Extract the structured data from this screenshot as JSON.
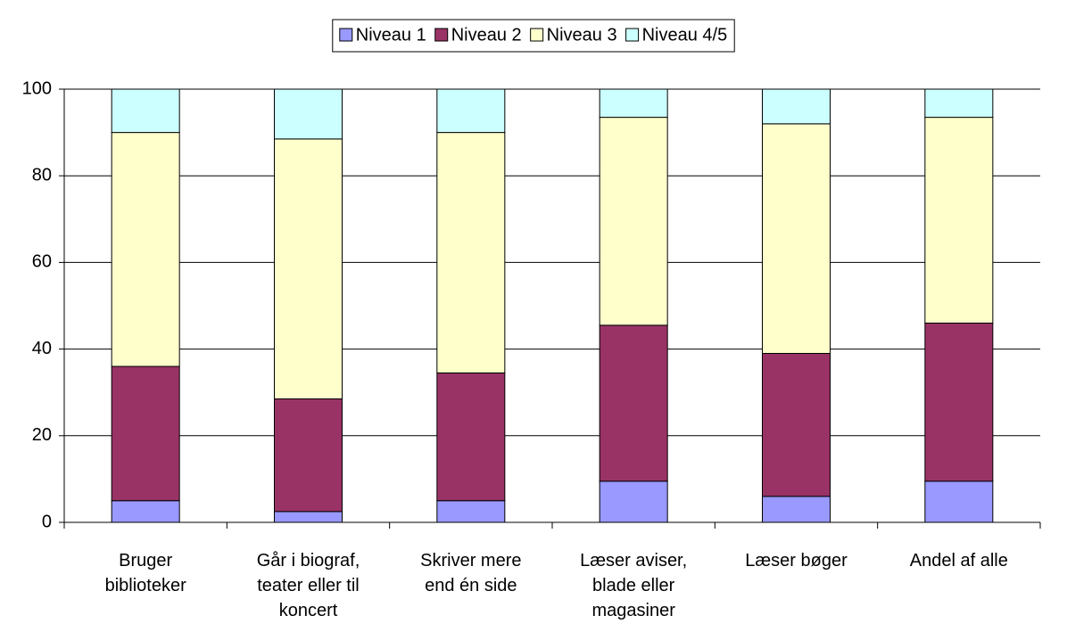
{
  "chart_data": {
    "type": "stacked_bar",
    "categories": [
      "Bruger biblioteker",
      "Går i biograf, teater eller til koncert",
      "Skriver mere end én side",
      "Læser aviser, blade eller magasiner",
      "Læser bøger",
      "Andel af alle"
    ],
    "series": [
      {
        "name": "Niveau 1",
        "color": "#9999ff",
        "values": [
          5,
          2.5,
          5,
          9.5,
          6,
          9.5
        ]
      },
      {
        "name": "Niveau 2",
        "color": "#993366",
        "values": [
          31,
          26,
          29.5,
          36,
          33,
          36.5
        ]
      },
      {
        "name": "Niveau 3",
        "color": "#ffffcc",
        "values": [
          54,
          60,
          55.5,
          48,
          53,
          47.5
        ]
      },
      {
        "name": "Niveau 4/5",
        "color": "#ccffff",
        "values": [
          10,
          11.5,
          10,
          6.5,
          8,
          6.5
        ]
      }
    ],
    "ylim": [
      0,
      100
    ],
    "yticks": [
      0,
      20,
      40,
      60,
      80,
      100
    ],
    "grid": true,
    "legend": "top"
  }
}
